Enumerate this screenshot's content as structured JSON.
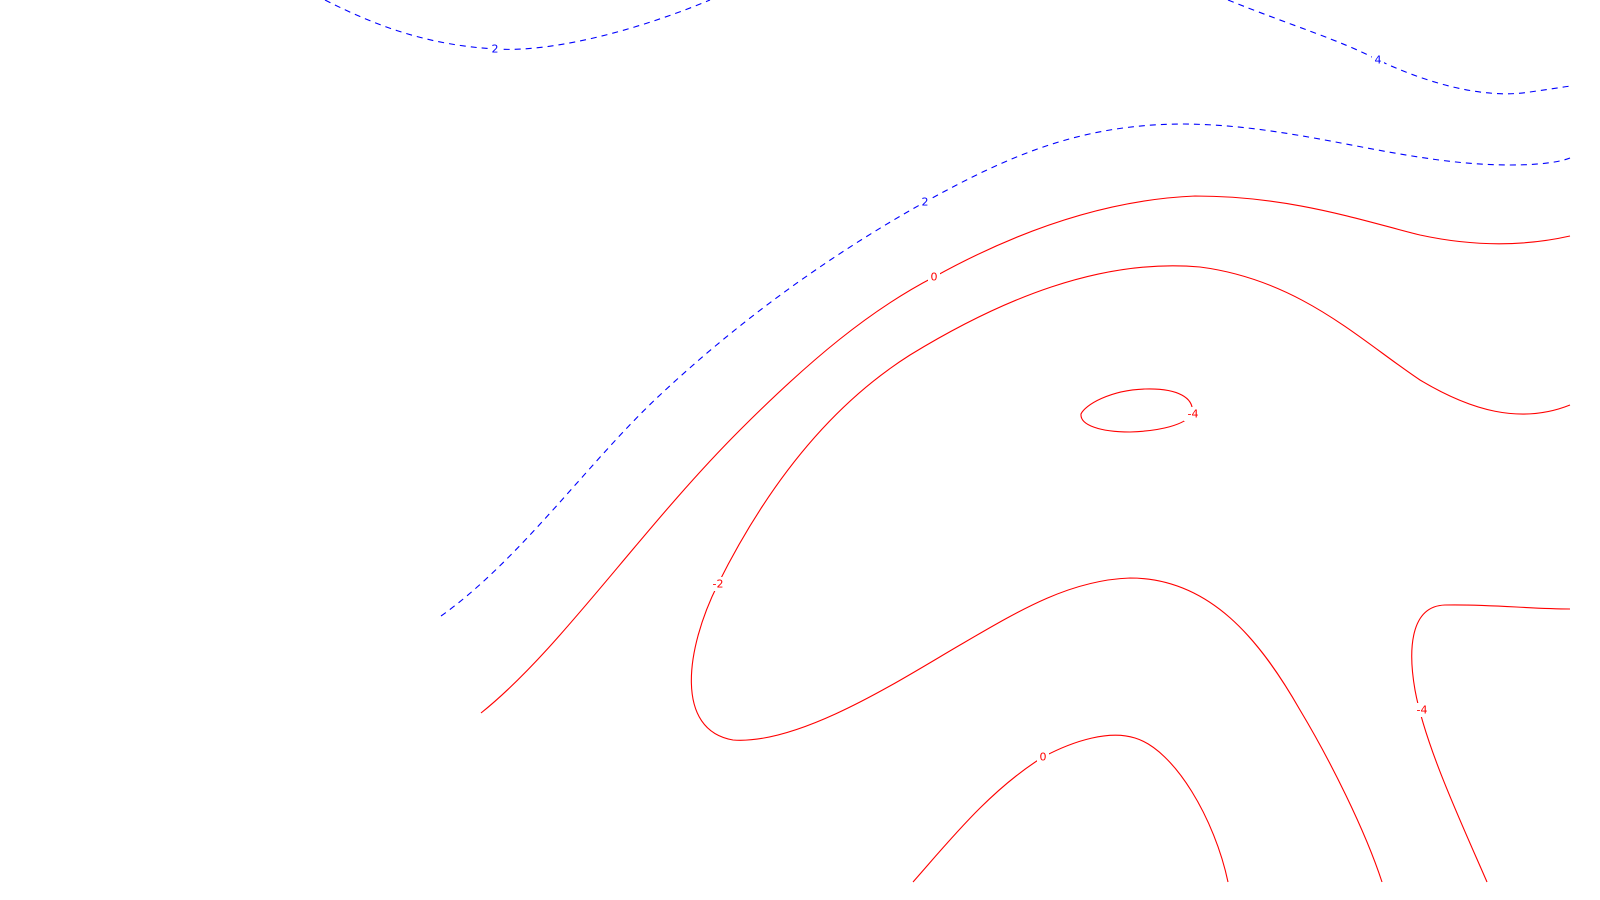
{
  "chart_data": {
    "type": "contour",
    "grid": false,
    "legend": "none",
    "colors": {
      "positive": "#0000ff",
      "negative_or_zero": "#ff0000"
    },
    "line_styles": {
      "positive": "dashed",
      "negative_or_zero": "solid"
    },
    "contours": [
      {
        "id": "c-pos-2-top",
        "level": 2,
        "label": "2",
        "color": "#0000ff",
        "dashed": true
      },
      {
        "id": "c-pos-4-topright",
        "level": 4,
        "label": "4",
        "color": "#0000ff",
        "dashed": true
      },
      {
        "id": "c-pos-2-mid",
        "level": 2,
        "label": "2",
        "color": "#0000ff",
        "dashed": true
      },
      {
        "id": "c-zero-upper",
        "level": 0,
        "label": "0",
        "color": "#ff0000",
        "dashed": false
      },
      {
        "id": "c-neg-2-loop",
        "level": -2,
        "label": "-2",
        "color": "#ff0000",
        "dashed": false
      },
      {
        "id": "c-neg-4-small",
        "level": -4,
        "label": "-4",
        "color": "#ff0000",
        "dashed": false
      },
      {
        "id": "c-zero-lower",
        "level": 0,
        "label": "0",
        "color": "#ff0000",
        "dashed": false
      },
      {
        "id": "c-neg-4-right",
        "level": -4,
        "label": "-4",
        "color": "#ff0000",
        "dashed": false
      }
    ]
  }
}
